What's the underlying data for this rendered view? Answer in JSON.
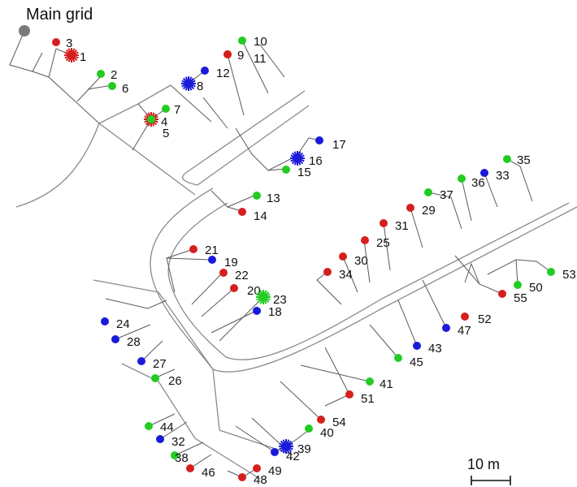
{
  "title": "Main grid",
  "scale_label": "10 m",
  "colors": {
    "red": "#d41f1f",
    "green": "#22cc22",
    "blue": "#1a1ad9",
    "grid": "#7a7a7a",
    "cable": "#5a5a5a",
    "road": "#8a8a8a"
  },
  "nodes": [
    {
      "id": "1",
      "color": "red",
      "shape": "star"
    },
    {
      "id": "2",
      "color": "green",
      "shape": "dot"
    },
    {
      "id": "3",
      "color": "red",
      "shape": "dot"
    },
    {
      "id": "4",
      "color": "red",
      "shape": "star"
    },
    {
      "id": "5",
      "color": "green",
      "shape": "dot"
    },
    {
      "id": "6",
      "color": "green",
      "shape": "dot"
    },
    {
      "id": "7",
      "color": "green",
      "shape": "dot"
    },
    {
      "id": "8",
      "color": "blue",
      "shape": "star"
    },
    {
      "id": "9",
      "color": "red",
      "shape": "dot"
    },
    {
      "id": "10",
      "color": "green",
      "shape": "dot"
    },
    {
      "id": "11",
      "color": "red",
      "shape": "dot"
    },
    {
      "id": "12",
      "color": "blue",
      "shape": "dot"
    },
    {
      "id": "13",
      "color": "green",
      "shape": "dot"
    },
    {
      "id": "14",
      "color": "red",
      "shape": "dot"
    },
    {
      "id": "15",
      "color": "green",
      "shape": "dot"
    },
    {
      "id": "16",
      "color": "blue",
      "shape": "star"
    },
    {
      "id": "17",
      "color": "blue",
      "shape": "dot"
    },
    {
      "id": "18",
      "color": "blue",
      "shape": "dot"
    },
    {
      "id": "19",
      "color": "blue",
      "shape": "dot"
    },
    {
      "id": "20",
      "color": "red",
      "shape": "dot"
    },
    {
      "id": "21",
      "color": "red",
      "shape": "dot"
    },
    {
      "id": "22",
      "color": "red",
      "shape": "dot"
    },
    {
      "id": "23",
      "color": "green",
      "shape": "star"
    },
    {
      "id": "24",
      "color": "blue",
      "shape": "dot"
    },
    {
      "id": "25",
      "color": "red",
      "shape": "dot"
    },
    {
      "id": "26",
      "color": "green",
      "shape": "dot"
    },
    {
      "id": "27",
      "color": "blue",
      "shape": "dot"
    },
    {
      "id": "28",
      "color": "blue",
      "shape": "dot"
    },
    {
      "id": "29",
      "color": "red",
      "shape": "dot"
    },
    {
      "id": "30",
      "color": "red",
      "shape": "dot"
    },
    {
      "id": "31",
      "color": "red",
      "shape": "dot"
    },
    {
      "id": "32",
      "color": "blue",
      "shape": "dot"
    },
    {
      "id": "33",
      "color": "blue",
      "shape": "dot"
    },
    {
      "id": "34",
      "color": "red",
      "shape": "dot"
    },
    {
      "id": "35",
      "color": "green",
      "shape": "dot"
    },
    {
      "id": "36",
      "color": "green",
      "shape": "dot"
    },
    {
      "id": "37",
      "color": "green",
      "shape": "dot"
    },
    {
      "id": "38",
      "color": "green",
      "shape": "dot"
    },
    {
      "id": "39",
      "color": "blue",
      "shape": "star"
    },
    {
      "id": "40",
      "color": "green",
      "shape": "dot"
    },
    {
      "id": "41",
      "color": "green",
      "shape": "dot"
    },
    {
      "id": "42",
      "color": "blue",
      "shape": "dot"
    },
    {
      "id": "43",
      "color": "blue",
      "shape": "dot"
    },
    {
      "id": "44",
      "color": "green",
      "shape": "dot"
    },
    {
      "id": "45",
      "color": "green",
      "shape": "dot"
    },
    {
      "id": "46",
      "color": "red",
      "shape": "dot"
    },
    {
      "id": "47",
      "color": "blue",
      "shape": "dot"
    },
    {
      "id": "48",
      "color": "red",
      "shape": "dot"
    },
    {
      "id": "49",
      "color": "red",
      "shape": "dot"
    },
    {
      "id": "50",
      "color": "green",
      "shape": "dot"
    },
    {
      "id": "51",
      "color": "red",
      "shape": "dot"
    },
    {
      "id": "52",
      "color": "red",
      "shape": "dot"
    },
    {
      "id": "53",
      "color": "green",
      "shape": "dot"
    },
    {
      "id": "54",
      "color": "red",
      "shape": "dot"
    },
    {
      "id": "55",
      "color": "red",
      "shape": "dot"
    }
  ]
}
